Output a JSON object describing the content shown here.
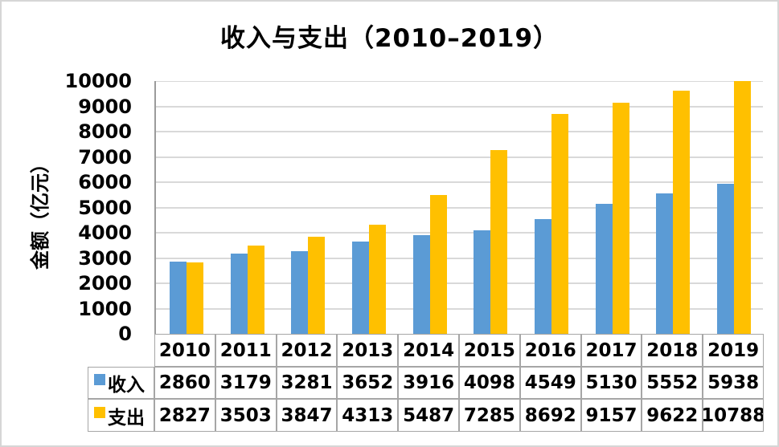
{
  "chart_data": {
    "type": "bar",
    "title": "收入与支出（2010–2019）",
    "ylabel": "金额（亿元）",
    "categories": [
      "2010",
      "2011",
      "2012",
      "2013",
      "2014",
      "2015",
      "2016",
      "2017",
      "2018",
      "2019"
    ],
    "series": [
      {
        "key": "income",
        "name": "收入",
        "color": "#5B9BD5",
        "values": [
          2860,
          3179,
          3281,
          3652,
          3916,
          4098,
          4549,
          5130,
          5552,
          5938
        ]
      },
      {
        "key": "expense",
        "name": "支出",
        "color": "#FFC000",
        "values": [
          2827,
          3503,
          3847,
          4313,
          5487,
          7285,
          8692,
          9157,
          9622,
          10788
        ]
      }
    ],
    "ylim": [
      0,
      10000
    ],
    "ytick_step": 1000,
    "ytick_labels": [
      "0",
      "1000",
      "2000",
      "3000",
      "4000",
      "5000",
      "6000",
      "7000",
      "8000",
      "9000",
      "10000"
    ],
    "grid": true,
    "gridline_color": "#D9D9D9",
    "axis_color": "#9B9B9B",
    "table_border_color": "#A6A6A6",
    "legend_position": "data-table-left",
    "legend": [
      "收入",
      "支出"
    ]
  },
  "frame": {
    "background": "#FFFFFF",
    "border_color": "#D6D6D6"
  }
}
